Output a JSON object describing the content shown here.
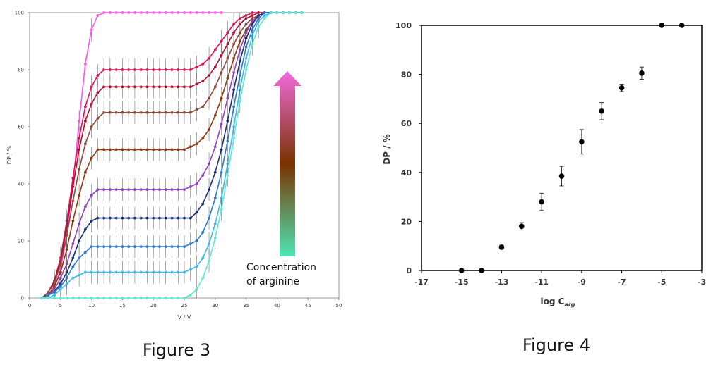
{
  "figure3": {
    "caption": "Figure 3",
    "arrow_label_line1": "Concentration",
    "arrow_label_line2": "of arginine",
    "arrow_colors": [
      "#f26bdc",
      "#7a3200",
      "#4ee6b3"
    ],
    "chart_data": {
      "type": "line",
      "xlabel": "V / V",
      "ylabel": "DP / %",
      "xlim": [
        0,
        50
      ],
      "ylim": [
        0,
        100
      ],
      "xticks": [
        "0",
        "5",
        "10",
        "15",
        "20",
        "25",
        "30",
        "35",
        "40",
        "45",
        "50"
      ],
      "yticks": [
        "0",
        "20",
        "40",
        "60",
        "80",
        "100"
      ],
      "x": [
        2,
        3,
        4,
        5,
        6,
        7,
        8,
        9,
        10,
        11,
        12,
        13,
        14,
        15,
        16,
        17,
        18,
        19,
        20,
        21,
        22,
        23,
        24,
        25,
        26,
        27,
        28,
        29,
        30,
        31,
        32,
        33,
        34,
        35,
        36,
        37,
        38,
        39,
        40,
        41,
        42,
        43,
        44
      ],
      "series": [
        {
          "color": "#ff55ee",
          "values": [
            0,
            1,
            4,
            10,
            22,
            40,
            62,
            82,
            94,
            99,
            100,
            100,
            100,
            100,
            100,
            100,
            100,
            100,
            100,
            100,
            100,
            100,
            100,
            100,
            100,
            100,
            100,
            100,
            100,
            100,
            null,
            null,
            null,
            null,
            null,
            null,
            null,
            null,
            null,
            null,
            null,
            null,
            null
          ]
        },
        {
          "color": "#e0105a",
          "values": [
            0,
            2,
            6,
            14,
            27,
            42,
            56,
            67,
            74,
            78,
            80,
            80,
            80,
            80,
            80,
            80,
            80,
            80,
            80,
            80,
            80,
            80,
            80,
            80,
            80,
            81,
            82,
            84,
            87,
            90,
            93,
            96,
            98,
            99,
            100,
            100,
            100,
            100,
            100,
            100,
            100,
            100,
            100
          ]
        },
        {
          "color": "#b01030",
          "values": [
            0,
            2,
            6,
            13,
            25,
            39,
            52,
            62,
            68,
            72,
            74,
            74,
            74,
            74,
            74,
            74,
            74,
            74,
            74,
            74,
            74,
            74,
            74,
            74,
            74,
            75,
            76,
            78,
            81,
            85,
            89,
            93,
            96,
            98,
            99,
            100,
            100,
            100,
            100,
            100,
            100,
            100,
            100
          ]
        },
        {
          "color": "#8b4a3a",
          "values": [
            0,
            2,
            5,
            12,
            22,
            34,
            45,
            54,
            60,
            63,
            65,
            65,
            65,
            65,
            65,
            65,
            65,
            65,
            65,
            65,
            65,
            65,
            65,
            65,
            65,
            66,
            67,
            70,
            74,
            79,
            84,
            89,
            93,
            96,
            98,
            99,
            100,
            100,
            100,
            100,
            100,
            100,
            100
          ]
        },
        {
          "color": "#8b3a10",
          "values": [
            0,
            1,
            4,
            9,
            17,
            27,
            36,
            44,
            49,
            52,
            52,
            52,
            52,
            52,
            52,
            52,
            52,
            52,
            52,
            52,
            52,
            52,
            52,
            52,
            53,
            54,
            56,
            59,
            64,
            70,
            77,
            84,
            90,
            94,
            97,
            99,
            100,
            100,
            100,
            100,
            100,
            100,
            100
          ]
        },
        {
          "color": "#9040c0",
          "values": [
            0,
            1,
            3,
            7,
            12,
            19,
            26,
            32,
            36,
            38,
            38,
            38,
            38,
            38,
            38,
            38,
            38,
            38,
            38,
            38,
            38,
            38,
            38,
            38,
            39,
            40,
            43,
            47,
            53,
            61,
            70,
            79,
            87,
            93,
            97,
            99,
            100,
            100,
            100,
            100,
            100,
            100,
            100
          ]
        },
        {
          "color": "#1a2f70",
          "values": [
            0,
            1,
            2,
            5,
            9,
            14,
            20,
            24,
            27,
            28,
            28,
            28,
            28,
            28,
            28,
            28,
            28,
            28,
            28,
            28,
            28,
            28,
            28,
            28,
            28,
            30,
            33,
            38,
            44,
            52,
            62,
            73,
            83,
            91,
            96,
            99,
            100,
            100,
            100,
            100,
            100,
            100,
            100
          ]
        },
        {
          "color": "#2a7ad0",
          "values": [
            0,
            1,
            2,
            4,
            7,
            11,
            14,
            16,
            18,
            18,
            18,
            18,
            18,
            18,
            18,
            18,
            18,
            18,
            18,
            18,
            18,
            18,
            18,
            18,
            19,
            20,
            23,
            28,
            35,
            44,
            55,
            67,
            78,
            88,
            94,
            98,
            100,
            100,
            100,
            100,
            100,
            100,
            100
          ]
        },
        {
          "color": "#40b8e8",
          "values": [
            0,
            0,
            1,
            3,
            5,
            7,
            8,
            9,
            9,
            9,
            9,
            9,
            9,
            9,
            9,
            9,
            9,
            9,
            9,
            9,
            9,
            9,
            9,
            9,
            10,
            11,
            14,
            19,
            26,
            35,
            47,
            60,
            73,
            84,
            92,
            97,
            99,
            100,
            100,
            100,
            100,
            100,
            100
          ]
        },
        {
          "color": "#60e8d0",
          "values": [
            0,
            0,
            0,
            0,
            0,
            0,
            0,
            0,
            0,
            0,
            0,
            0,
            0,
            0,
            0,
            0,
            0,
            0,
            0,
            0,
            0,
            0,
            0,
            0,
            1,
            3,
            7,
            13,
            21,
            31,
            43,
            56,
            69,
            80,
            89,
            95,
            98,
            100,
            100,
            100,
            100,
            100,
            100
          ]
        }
      ]
    }
  },
  "figure4": {
    "caption": "Figure 4",
    "chart_data": {
      "type": "scatter",
      "xlabel_main": "log C",
      "xlabel_sub": "arg",
      "ylabel": "DP / %",
      "xlim": [
        -17,
        -3
      ],
      "ylim": [
        0,
        100
      ],
      "xticks": [
        "-17",
        "-15",
        "-13",
        "-11",
        "-9",
        "-7",
        "-5",
        "-3"
      ],
      "yticks": [
        "0",
        "20",
        "40",
        "60",
        "80",
        "100"
      ],
      "points": [
        {
          "x": -15,
          "y": 0,
          "err": 0
        },
        {
          "x": -14,
          "y": 0,
          "err": 0
        },
        {
          "x": -13,
          "y": 9.5,
          "err": 0.8
        },
        {
          "x": -12,
          "y": 18,
          "err": 1.5
        },
        {
          "x": -11,
          "y": 28,
          "err": 3.5
        },
        {
          "x": -10,
          "y": 38.5,
          "err": 4
        },
        {
          "x": -9,
          "y": 52.5,
          "err": 5
        },
        {
          "x": -8,
          "y": 65,
          "err": 3.5
        },
        {
          "x": -7,
          "y": 74.5,
          "err": 1.5
        },
        {
          "x": -6,
          "y": 80.5,
          "err": 2.5
        },
        {
          "x": -5,
          "y": 100,
          "err": 0
        },
        {
          "x": -4,
          "y": 100,
          "err": 0
        }
      ]
    }
  }
}
